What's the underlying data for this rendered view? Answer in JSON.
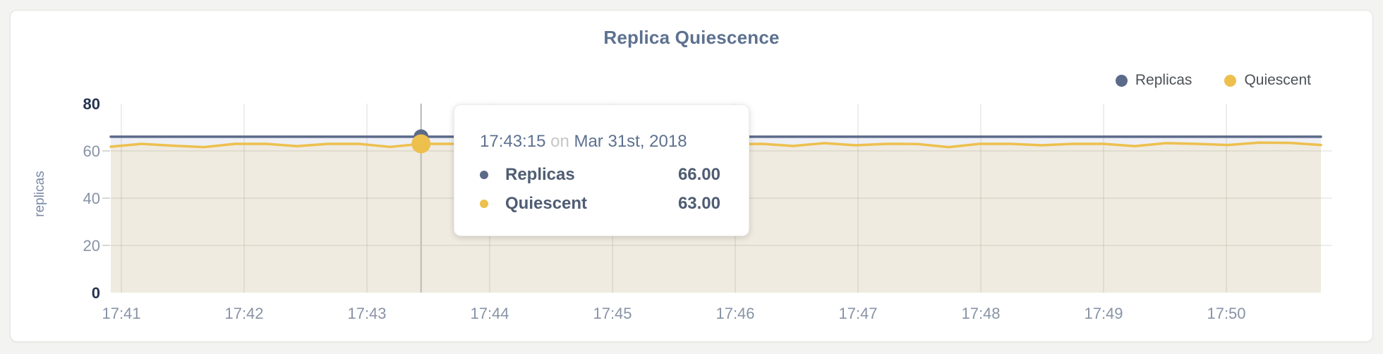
{
  "chart": {
    "title": "Replica Quiescence",
    "y_axis_label": "replicas"
  },
  "legend": {
    "items": [
      {
        "label": "Replicas",
        "color": "#5c6a89"
      },
      {
        "label": "Quiescent",
        "color": "#edc04e"
      }
    ]
  },
  "tooltip": {
    "time": "17:43:15",
    "connector": "on",
    "date": "Mar 31st, 2018",
    "rows": [
      {
        "label": "Replicas",
        "value": "66.00",
        "color": "#5c6a89"
      },
      {
        "label": "Quiescent",
        "value": "63.00",
        "color": "#edc04e"
      }
    ]
  },
  "chart_data": {
    "type": "area",
    "title": "Replica Quiescence",
    "xlabel": "",
    "ylabel": "replicas",
    "ylim": [
      0,
      80
    ],
    "y_ticks": [
      0,
      20,
      40,
      60,
      80
    ],
    "x_ticks": [
      "17:41",
      "17:42",
      "17:43",
      "17:44",
      "17:45",
      "17:46",
      "17:47",
      "17:48",
      "17:49",
      "17:50"
    ],
    "grid": true,
    "legend_position": "top-right",
    "hover_index": 10,
    "hover_time": "17:43:15",
    "series": [
      {
        "name": "Replicas",
        "color": "#5c6a89",
        "fill": "#edeff4",
        "hover_value": 66.0,
        "values": [
          66,
          66,
          66,
          66,
          66,
          66,
          66,
          66,
          66,
          66,
          66,
          66,
          66,
          66,
          66,
          66,
          66,
          66,
          66,
          66,
          66,
          66,
          66,
          66,
          66,
          66,
          66,
          66,
          66,
          66,
          66,
          66,
          66,
          66,
          66,
          66,
          66,
          66,
          66,
          66
        ]
      },
      {
        "name": "Quiescent",
        "color": "#edc04e",
        "fill": "#f0ebe0",
        "hover_value": 63.0,
        "values": [
          61.8,
          63,
          62.2,
          61.6,
          63,
          63,
          62,
          63,
          63,
          61.7,
          63,
          63,
          62.5,
          63,
          62.3,
          63,
          63,
          62.5,
          63,
          63,
          62.8,
          63,
          62.1,
          63.3,
          62.4,
          63,
          62.9,
          61.6,
          63,
          63,
          62.4,
          63,
          63,
          62,
          63.3,
          63,
          62.5,
          63.5,
          63.4,
          62.5
        ]
      }
    ],
    "colors": {
      "axis_strong": "#26334f",
      "axis_muted": "#8793a6",
      "gridline": "rgba(90,85,60,0.10)",
      "crosshair": "#c4c4c3",
      "title": "#5d7190"
    }
  }
}
